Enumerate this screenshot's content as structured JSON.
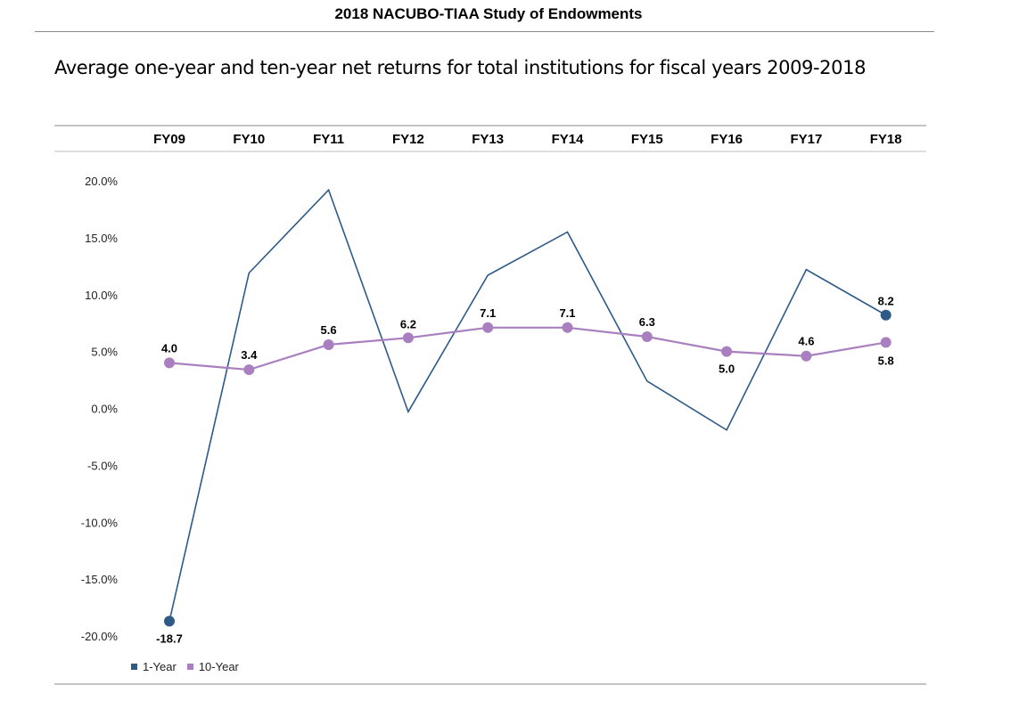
{
  "header": {
    "title": "2018 NACUBO-TIAA Study of Endowments"
  },
  "chart_data": {
    "type": "line",
    "title": "Average one-year and ten-year net returns for total institutions for fiscal years 2009-2018",
    "categories": [
      "FY09",
      "FY10",
      "FY11",
      "FY12",
      "FY13",
      "FY14",
      "FY15",
      "FY16",
      "FY17",
      "FY18"
    ],
    "ylim": [
      -20,
      20
    ],
    "yticks": [
      "20.0%",
      "15.0%",
      "10.0%",
      "5.0%",
      "0.0%",
      "-5.0%",
      "-10.0%",
      "-15.0%",
      "-20.0%"
    ],
    "ytick_values": [
      20,
      15,
      10,
      5,
      0,
      -5,
      -10,
      -15,
      -20
    ],
    "category_axis_position": "top",
    "legend_position": "bottom-left",
    "series": [
      {
        "name": "1-Year",
        "color": "#2e5a88",
        "values": [
          -18.7,
          11.9,
          19.2,
          -0.3,
          11.7,
          15.5,
          2.4,
          -1.9,
          12.2,
          8.2
        ],
        "labels": [
          "-18.7",
          "",
          "",
          "",
          "",
          "",
          "",
          "",
          "",
          "8.2"
        ],
        "markers": [
          true,
          false,
          false,
          false,
          false,
          false,
          false,
          false,
          false,
          true
        ]
      },
      {
        "name": "10-Year",
        "color": "#a97fc0",
        "values": [
          4.0,
          3.4,
          5.6,
          6.2,
          7.1,
          7.1,
          6.3,
          5.0,
          4.6,
          5.8
        ],
        "labels": [
          "4.0",
          "3.4",
          "5.6",
          "6.2",
          "7.1",
          "7.1",
          "6.3",
          "5.0",
          "4.6",
          "5.8"
        ],
        "markers": [
          true,
          true,
          true,
          true,
          true,
          true,
          true,
          true,
          true,
          true
        ]
      }
    ]
  }
}
